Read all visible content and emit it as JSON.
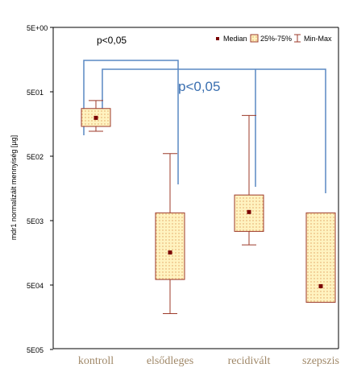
{
  "chart_data": {
    "type": "box",
    "ylabel": "mdr1 normalizált mennyiség [µg]",
    "y_scale": "log",
    "y_ticks": [
      "5E+00",
      "5E01",
      "5E02",
      "5E03",
      "5E04",
      "5E05"
    ],
    "categories": [
      "kontroll",
      "elsődleges",
      "recidivált",
      "szepszis"
    ],
    "boxes": [
      {
        "category": "kontroll",
        "median": 0.197,
        "q1": 0.145,
        "q3": 0.275,
        "min": 0.122,
        "max": 0.365
      },
      {
        "category": "elsődleges",
        "median": 0.0016,
        "q1": 0.00061,
        "q3": 0.0066,
        "min": 0.00018,
        "max": 0.055
      },
      {
        "category": "recidivált",
        "median": 0.0068,
        "q1": 0.0034,
        "q3": 0.0125,
        "min": 0.0021,
        "max": 0.215
      },
      {
        "category": "szepszis",
        "median": 0.00048,
        "q1": 0.00027,
        "q3": 0.0066,
        "min": null,
        "max": null
      }
    ],
    "legend": {
      "position": "top-right",
      "entries": [
        {
          "label": "Median",
          "marker": "dot"
        },
        {
          "label": "25%-75%",
          "marker": "box"
        },
        {
          "label": "Min-Max",
          "marker": "whisker"
        }
      ]
    },
    "annotations": [
      {
        "text": "p<0,05",
        "bracket": [
          "kontroll",
          "elsődleges"
        ]
      },
      {
        "text": "p<0,05",
        "bracket": [
          "kontroll",
          "recidivált",
          "szepszis"
        ]
      }
    ],
    "grid": false
  },
  "colors": {
    "box_fill": "#fff3c0",
    "box_dots": "#e0a060",
    "box_stroke": "#9c3a2a",
    "whisker": "#9c3a2a",
    "median": "#7a0000",
    "bracket": "#5a88c4",
    "annotation_text": "#3a6fb0",
    "axis": "#000000",
    "category_text": "#a08868"
  }
}
